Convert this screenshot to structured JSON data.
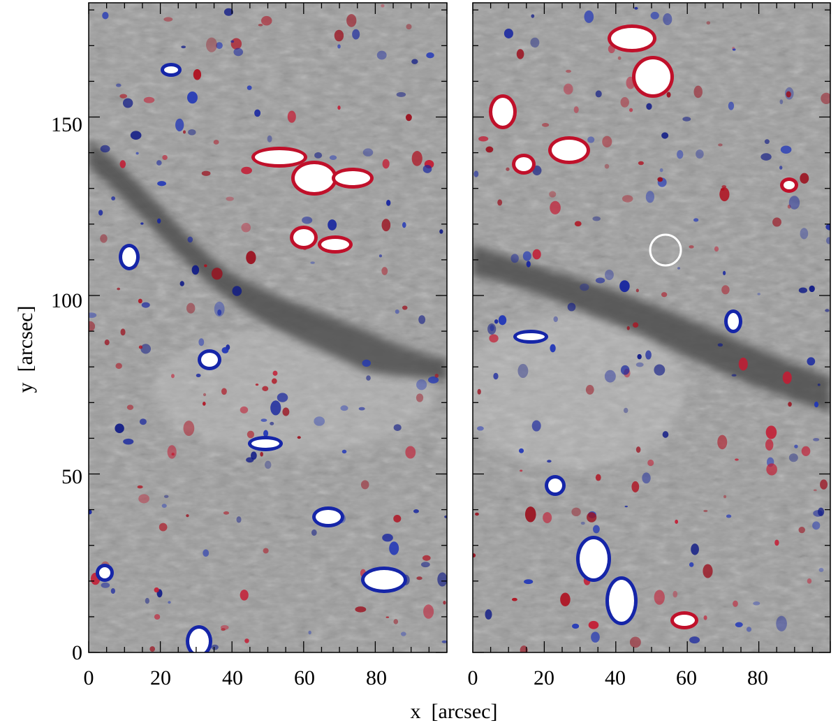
{
  "chart_data": {
    "type": "image",
    "panels": [
      {
        "name": "left",
        "x_ticks": [
          "0",
          "20",
          "40",
          "60",
          "80"
        ],
        "xlim": [
          0,
          100
        ],
        "ylim": [
          0,
          182
        ]
      },
      {
        "name": "right",
        "x_ticks": [
          "0",
          "20",
          "40",
          "60",
          "80"
        ],
        "xlim": [
          0,
          100
        ],
        "ylim": [
          0,
          182
        ]
      }
    ],
    "y_ticks": [
      "0",
      "50",
      "100",
      "150"
    ],
    "xlabel": "x  [arcsec]",
    "ylabel": "y  [arcsec]",
    "colors": {
      "positive": "#c0102a",
      "negative": "#1525a8",
      "background": "#9a9a9a",
      "filament": "#555555"
    },
    "marker": {
      "panel": "right",
      "x": 54,
      "y": 114,
      "shape": "circle"
    }
  }
}
